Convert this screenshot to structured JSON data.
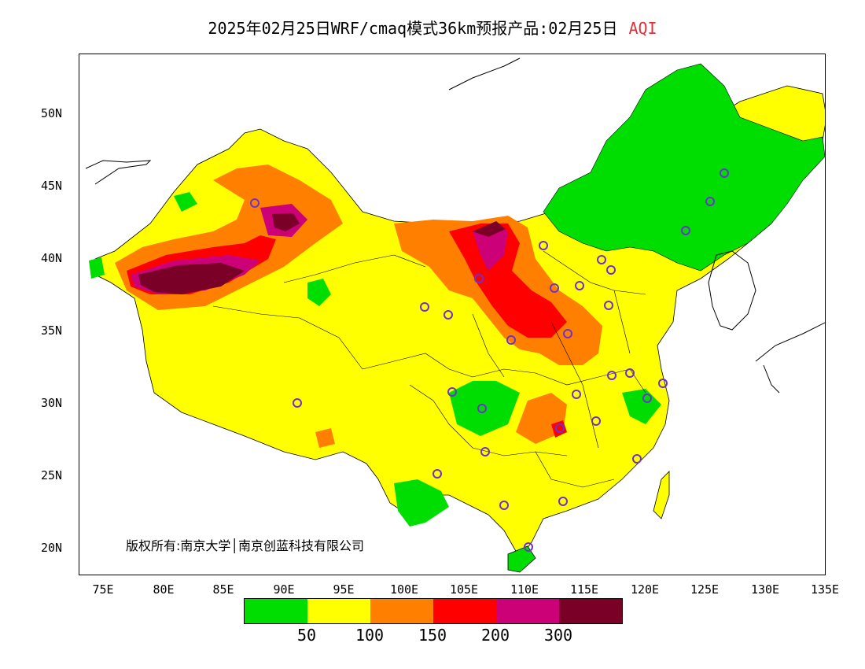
{
  "title": {
    "main": "2025年02月25日WRF/cmaq模式36km预报产品:02月25日",
    "variable": "AQI"
  },
  "map": {
    "lat_labels": [
      "50N",
      "45N",
      "40N",
      "35N",
      "30N",
      "25N",
      "20N"
    ],
    "lon_labels": [
      "75E",
      "80E",
      "85E",
      "90E",
      "95E",
      "100E",
      "105E",
      "110E",
      "115E",
      "120E",
      "125E",
      "130E",
      "135E"
    ],
    "copyright": "版权所有:南京大学│南京创蓝科技有限公司"
  },
  "legend": {
    "colors": [
      "#00dd00",
      "#ffff00",
      "#ff8000",
      "#ff0000",
      "#cc0077",
      "#7a0028"
    ],
    "thresholds": [
      "50",
      "100",
      "150",
      "200",
      "300"
    ]
  }
}
